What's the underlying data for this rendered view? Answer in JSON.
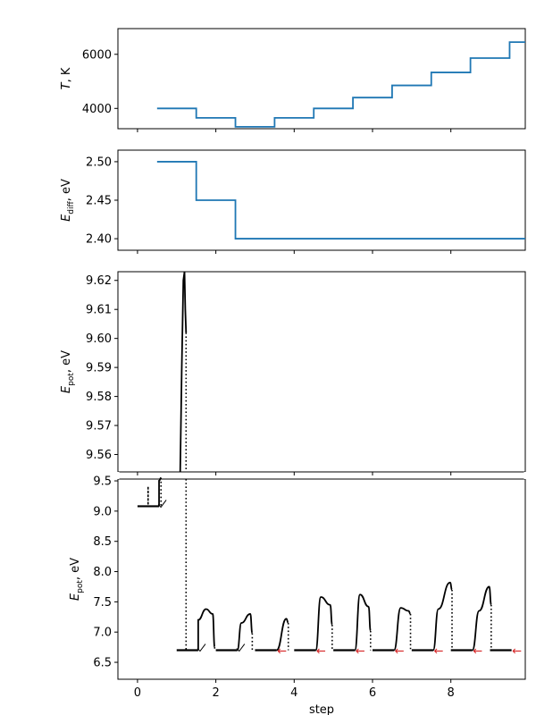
{
  "chart_data": [
    {
      "type": "line",
      "panel": "temperature",
      "ylabel_main": "T",
      "ylabel_unit": ", K",
      "ylim": [
        3250,
        6950
      ],
      "xlim": [
        -0.5,
        9.9
      ],
      "yticks": [
        4000,
        6000
      ],
      "x": [
        0.5,
        1.5,
        2.5,
        3.5,
        4.5,
        5.5,
        6.5,
        7.5,
        8.5,
        9.5,
        9.9
      ],
      "values": [
        4000,
        3650,
        3320,
        3650,
        4000,
        4400,
        4850,
        5330,
        5860,
        6450,
        6450
      ]
    },
    {
      "type": "line",
      "panel": "diffusion_energy",
      "ylabel_main": "E",
      "ylabel_sub": "diff",
      "ylabel_unit": ", eV",
      "ylim": [
        2.385,
        2.515
      ],
      "xlim": [
        -0.5,
        9.9
      ],
      "yticks": [
        2.4,
        2.45,
        2.5
      ],
      "ytick_labels": [
        "2.40",
        "2.45",
        "2.50"
      ],
      "x": [
        0.5,
        1.5,
        2.5,
        9.9
      ],
      "values": [
        2.5,
        2.45,
        2.4,
        2.4
      ]
    },
    {
      "type": "line",
      "panel": "potential_energy_zoom",
      "ylabel_main": "E",
      "ylabel_sub": "pot",
      "ylabel_unit": ", eV",
      "ylim": [
        9.554,
        9.623
      ],
      "xlim": [
        -0.5,
        9.9
      ],
      "yticks": [
        9.56,
        9.57,
        9.58,
        9.59,
        9.6,
        9.61,
        9.62
      ],
      "ytick_labels": [
        "9.56",
        "9.57",
        "9.58",
        "9.59",
        "9.60",
        "9.61",
        "9.62"
      ],
      "x": [
        1.09,
        1.13,
        1.17,
        1.2,
        1.22,
        1.24
      ],
      "values": [
        9.554,
        9.59,
        9.62,
        9.623,
        9.61,
        9.602
      ]
    },
    {
      "type": "line",
      "panel": "potential_energy_full",
      "ylabel_main": "E",
      "ylabel_sub": "pot",
      "ylabel_unit": ", eV",
      "xlabel": "step",
      "ylim": [
        6.22,
        9.53
      ],
      "xlim": [
        -0.5,
        9.9
      ],
      "xticks": [
        0,
        2,
        4,
        6,
        8
      ],
      "xtick_labels": [
        "0",
        "2",
        "4",
        "6",
        "8"
      ],
      "yticks": [
        6.5,
        7.0,
        7.5,
        8.0,
        8.5,
        9.0,
        9.5
      ],
      "ytick_labels": [
        "6.5",
        "7.0",
        "7.5",
        "8.0",
        "8.5",
        "9.0",
        "9.5"
      ],
      "steps": [
        {
          "start": 0.0,
          "base": 9.08,
          "mark": "check",
          "peaks": [
            [
              0.55,
              9.5
            ]
          ],
          "end_value": 9.55,
          "drop": 9.38,
          "drop_x": 0.27
        },
        {
          "start": 1.0,
          "base": 6.7,
          "mark": "check",
          "peaks": [
            [
              0.55,
              7.2
            ],
            [
              0.75,
              7.38
            ],
            [
              0.92,
              7.3
            ]
          ],
          "end_value": 6.75,
          "drop": 9.55,
          "drop_x": 1.24
        },
        {
          "start": 2.0,
          "base": 6.7,
          "mark": "check",
          "peaks": [
            [
              0.65,
              7.15
            ],
            [
              0.88,
              7.3
            ]
          ],
          "end_value": 6.98
        },
        {
          "start": 3.0,
          "base": 6.7,
          "mark": "arrow",
          "peaks": [
            [
              0.8,
              7.22
            ]
          ],
          "end_value": 7.15
        },
        {
          "start": 4.0,
          "base": 6.7,
          "mark": "arrow",
          "peaks": [
            [
              0.68,
              7.58
            ],
            [
              0.92,
              7.45
            ]
          ],
          "end_value": 7.12
        },
        {
          "start": 5.0,
          "base": 6.7,
          "mark": "arrow",
          "peaks": [
            [
              0.68,
              7.62
            ],
            [
              0.9,
              7.42
            ]
          ],
          "end_value": 7.02
        },
        {
          "start": 6.0,
          "base": 6.7,
          "mark": "arrow",
          "peaks": [
            [
              0.72,
              7.4
            ],
            [
              0.92,
              7.35
            ]
          ],
          "end_value": 7.3
        },
        {
          "start": 7.0,
          "base": 6.7,
          "mark": "arrow",
          "peaks": [
            [
              0.68,
              7.38
            ],
            [
              0.98,
              7.82
            ]
          ],
          "end_value": 7.7
        },
        {
          "start": 8.0,
          "base": 6.7,
          "mark": "arrow",
          "peaks": [
            [
              0.72,
              7.35
            ],
            [
              0.98,
              7.75
            ]
          ],
          "end_value": 7.45
        },
        {
          "start": 9.0,
          "base": 6.7,
          "mark": "arrow",
          "peaks": [],
          "end_value": 6.7
        }
      ]
    }
  ]
}
